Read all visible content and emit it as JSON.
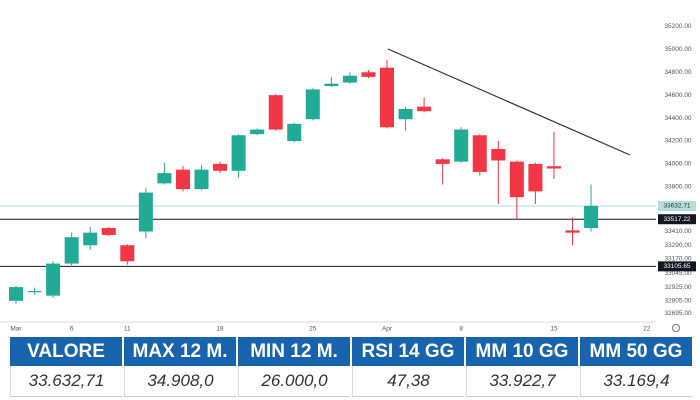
{
  "chart_data": {
    "type": "candlestick",
    "categories": [
      "Mar",
      null,
      null,
      "6",
      null,
      null,
      "11",
      null,
      null,
      null,
      null,
      "18",
      null,
      null,
      null,
      null,
      "25",
      null,
      null,
      null,
      "Apr",
      null,
      null,
      null,
      "8",
      null,
      null,
      null,
      null,
      "15",
      null,
      null,
      null,
      null,
      "22",
      null
    ],
    "open": [
      32805,
      32880,
      32850,
      33130,
      33290,
      33440,
      33290,
      33410,
      33830,
      33950,
      33780,
      34000,
      33940,
      34260,
      34600,
      34200,
      34390,
      34680,
      34710,
      34800,
      34840,
      34390,
      34500,
      34040,
      34020,
      34250,
      34130,
      34020,
      34000,
      33980,
      33420,
      33440,
      null,
      null,
      null,
      null
    ],
    "high": [
      32935,
      32920,
      33150,
      33400,
      33450,
      33450,
      33300,
      33790,
      34010,
      33980,
      33990,
      34020,
      34260,
      34310,
      34610,
      34360,
      34660,
      34760,
      34800,
      34820,
      34908,
      34500,
      34580,
      34050,
      34320,
      34260,
      34200,
      34030,
      34010,
      34280,
      33530,
      33820,
      null,
      null,
      null,
      null
    ],
    "low": [
      32780,
      32860,
      32830,
      33100,
      33250,
      33370,
      33120,
      33350,
      33820,
      33760,
      33770,
      33920,
      33880,
      34250,
      34290,
      34190,
      34380,
      34670,
      34700,
      34750,
      34310,
      34290,
      34450,
      33820,
      34010,
      33900,
      33650,
      33510,
      33650,
      33870,
      33290,
      33410,
      null,
      null,
      null,
      null
    ],
    "close": [
      32925,
      32890,
      33130,
      33360,
      33400,
      33380,
      33150,
      33750,
      33920,
      33780,
      33950,
      33940,
      34250,
      34300,
      34300,
      34350,
      34650,
      34700,
      34770,
      34760,
      34320,
      34480,
      34460,
      34000,
      34300,
      33930,
      34030,
      33710,
      33760,
      33960,
      33400,
      33632.71,
      null,
      null,
      null,
      null
    ],
    "up_color": "#22ab94",
    "down_color": "#f23645",
    "ylim": [
      32620,
      35300
    ],
    "yticks": [
      {
        "value": 35200,
        "label": "35200.00"
      },
      {
        "value": 35000,
        "label": "35000.00"
      },
      {
        "value": 34800,
        "label": "34800.00"
      },
      {
        "value": 34600,
        "label": "34600.00"
      },
      {
        "value": 34400,
        "label": "34400.00"
      },
      {
        "value": 34200,
        "label": "34200.00"
      },
      {
        "value": 34000,
        "label": "34000.00"
      },
      {
        "value": 33800,
        "label": "33800.00"
      },
      {
        "value": 33410,
        "label": "33410.00"
      },
      {
        "value": 33290,
        "label": "33290.00"
      },
      {
        "value": 33170,
        "label": "33170.00"
      },
      {
        "value": 33045,
        "label": "33045.00"
      },
      {
        "value": 32925,
        "label": "32925.00"
      },
      {
        "value": 32805,
        "label": "32805.00"
      },
      {
        "value": 32695,
        "label": "32695.00"
      }
    ],
    "price_lines": [
      {
        "value": 33632.71,
        "label": "33632.71",
        "color": "#b2dfdb"
      },
      {
        "value": 33517.22,
        "label": "33517.22",
        "color": "#131722"
      },
      {
        "value": 33105.65,
        "label": "33105.65",
        "color": "#131722"
      }
    ]
  },
  "table": {
    "header": [
      "VALORE",
      "MAX 12 M.",
      "MIN 12 M.",
      "RSI 14 GG",
      "MM 10 GG",
      "MM 50 GG"
    ],
    "rows": [
      [
        "33.632,71",
        "34.908,0",
        "26.000,0",
        "47,38",
        "33.922,7",
        "33.169,4"
      ]
    ]
  }
}
